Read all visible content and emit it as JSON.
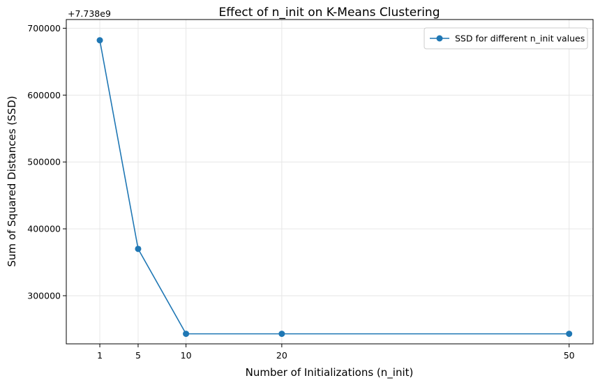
{
  "chart_data": {
    "type": "line",
    "title": "Effect of n_init on K-Means Clustering",
    "xlabel": "Number of Initializations (n_init)",
    "ylabel": "Sum of Squared Distances (SSD)",
    "y_offset_label": "+7.738e9",
    "x_ticks": [
      1,
      5,
      10,
      20,
      50
    ],
    "y_ticks": [
      300000,
      400000,
      500000,
      600000,
      700000
    ],
    "xlim": [
      -2.5,
      52.5
    ],
    "ylim": [
      228000,
      713000
    ],
    "grid": true,
    "legend_position": "top-right",
    "series": [
      {
        "name": "SSD for different n_init values",
        "color": "#1f77b4",
        "marker": "circle",
        "x": [
          1,
          5,
          10,
          20,
          50
        ],
        "y": [
          682000,
          370000,
          243000,
          243000,
          243000
        ]
      }
    ]
  }
}
